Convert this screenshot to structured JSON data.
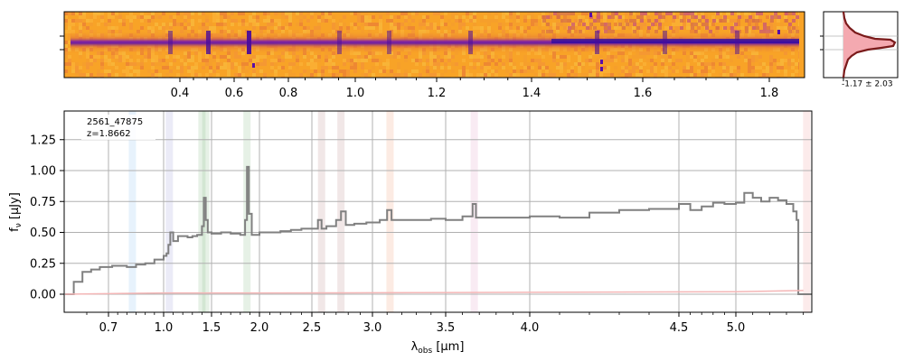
{
  "chart_data": [
    {
      "type": "heatmap",
      "panel": "2D spectrum",
      "x_top_ticks": [
        "0.4",
        "0.6",
        "0.8",
        "1.0",
        "1.2",
        "1.4",
        "1.6",
        "1.8"
      ],
      "colormap": "plasma",
      "colors": {
        "background": "#f8a327",
        "trace": "#6a1aa0",
        "core": "#2a0aa0"
      }
    },
    {
      "type": "histogram",
      "panel": "pixel distribution",
      "label": "-1.17 ± 2.03",
      "colors": {
        "fill": "#f4a9b0",
        "line": "#7a1a1a"
      }
    },
    {
      "type": "line",
      "panel": "1D spectrum",
      "annotation": {
        "id": "2561_47875",
        "redshift": "z=1.8662"
      },
      "xlabel": "λobs [μm]",
      "ylabel": "fν [μJy]",
      "x_ticks": [
        {
          "v": 0.7,
          "label": "0.7"
        },
        {
          "v": 1.0,
          "label": "1.0"
        },
        {
          "v": 1.5,
          "label": "1.5"
        },
        {
          "v": 2.0,
          "label": "2.0"
        },
        {
          "v": 2.5,
          "label": "2.5"
        },
        {
          "v": 3.0,
          "label": "3.0"
        },
        {
          "v": 3.5,
          "label": "3.5"
        },
        {
          "v": 4.0,
          "label": "4.0"
        },
        {
          "v": 4.5,
          "label": "4.5"
        },
        {
          "v": 5.0,
          "label": "5.0"
        }
      ],
      "y_ticks": [
        {
          "v": 0.0,
          "label": "0.00"
        },
        {
          "v": 0.25,
          "label": "0.25"
        },
        {
          "v": 0.5,
          "label": "0.50"
        },
        {
          "v": 0.75,
          "label": "0.75"
        },
        {
          "v": 1.0,
          "label": "1.00"
        },
        {
          "v": 1.25,
          "label": "1.25"
        }
      ],
      "xlim": [
        0.6,
        5.45
      ],
      "ylim": [
        -0.15,
        1.48
      ],
      "x_scale": "asinh-like (compressed at long wavelengths)",
      "grid": true,
      "series": [
        {
          "role": "flux",
          "color": "#808080",
          "x": [
            0.6,
            0.62,
            0.64,
            0.66,
            0.68,
            0.72,
            0.76,
            0.8,
            0.85,
            0.9,
            0.95,
            1.0,
            1.03,
            1.05,
            1.07,
            1.1,
            1.15,
            1.2,
            1.25,
            1.3,
            1.35,
            1.4,
            1.42,
            1.44,
            1.46,
            1.5,
            1.6,
            1.7,
            1.8,
            1.85,
            1.87,
            1.89,
            1.92,
            2.0,
            2.1,
            2.2,
            2.3,
            2.4,
            2.5,
            2.55,
            2.58,
            2.62,
            2.66,
            2.7,
            2.74,
            2.78,
            2.85,
            2.95,
            3.05,
            3.1,
            3.13,
            3.2,
            3.3,
            3.4,
            3.5,
            3.6,
            3.66,
            3.68,
            3.72,
            3.8,
            3.9,
            4.0,
            4.1,
            4.2,
            4.3,
            4.4,
            4.5,
            4.6,
            4.7,
            4.8,
            4.9,
            5.0,
            5.05,
            5.1,
            5.15,
            5.2,
            5.25,
            5.3,
            5.34,
            5.36,
            5.37,
            5.4,
            5.45
          ],
          "y": [
            0.0,
            0.1,
            0.18,
            0.2,
            0.22,
            0.23,
            0.23,
            0.22,
            0.24,
            0.25,
            0.28,
            0.31,
            0.33,
            0.4,
            0.5,
            0.43,
            0.47,
            0.47,
            0.46,
            0.47,
            0.48,
            0.55,
            0.78,
            0.6,
            0.5,
            0.49,
            0.5,
            0.49,
            0.48,
            0.6,
            1.03,
            0.65,
            0.48,
            0.5,
            0.5,
            0.51,
            0.52,
            0.53,
            0.53,
            0.6,
            0.53,
            0.55,
            0.55,
            0.6,
            0.67,
            0.56,
            0.57,
            0.58,
            0.6,
            0.68,
            0.6,
            0.6,
            0.6,
            0.61,
            0.6,
            0.63,
            0.73,
            0.62,
            0.62,
            0.62,
            0.62,
            0.63,
            0.62,
            0.66,
            0.68,
            0.69,
            0.73,
            0.68,
            0.71,
            0.74,
            0.73,
            0.74,
            0.82,
            0.78,
            0.75,
            0.78,
            0.76,
            0.73,
            0.67,
            0.6,
            0.0,
            0.0,
            0.0
          ]
        },
        {
          "role": "uncertainty",
          "color": "#f4b6b6",
          "x": [
            0.6,
            1.0,
            2.0,
            3.0,
            4.0,
            5.0,
            5.4
          ],
          "y": [
            0.0,
            0.01,
            0.01,
            0.012,
            0.015,
            0.02,
            0.03
          ]
        }
      ],
      "line_bands": [
        {
          "x": 0.83,
          "color": "#9fcbf5"
        },
        {
          "x": 1.06,
          "color": "#b0b0e0"
        },
        {
          "x": 1.4,
          "color": "#9ac99a"
        },
        {
          "x": 1.44,
          "color": "#9ac99a"
        },
        {
          "x": 1.87,
          "color": "#9ac99a"
        },
        {
          "x": 2.58,
          "color": "#c9a0a0"
        },
        {
          "x": 2.74,
          "color": "#c9a0a0"
        },
        {
          "x": 3.12,
          "color": "#f4b090"
        },
        {
          "x": 3.67,
          "color": "#e9b0d0"
        },
        {
          "x": 5.42,
          "color": "#f4b0b0"
        }
      ]
    }
  ]
}
